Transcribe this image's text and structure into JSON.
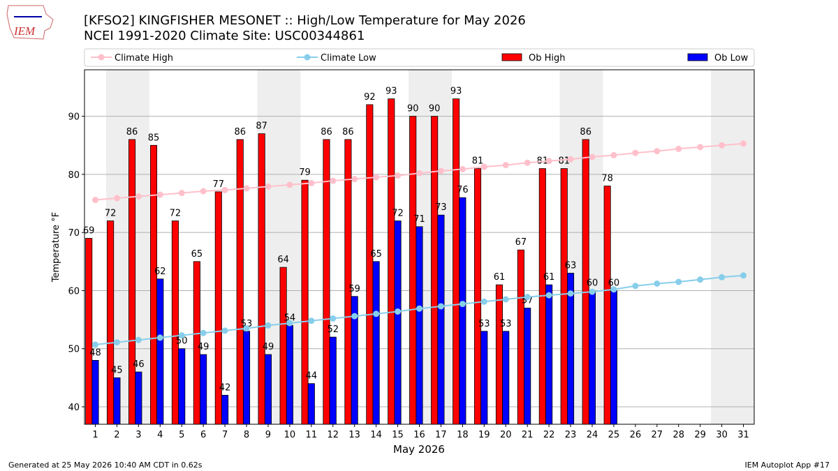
{
  "chart_data": {
    "type": "bar",
    "logo": "IEM",
    "title": "[KFSO2] KINGFISHER MESONET :: High/Low Temperature for May 2026",
    "subtitle": "NCEI 1991-2020 Climate Site: USC00344861",
    "xlabel": "May 2026",
    "ylabel": "Temperature °F",
    "footer_left": "Generated at 25 May 2026 10:40 AM CDT in 0.62s",
    "footer_right": "IEM Autoplot App #17",
    "categories": [
      "1",
      "2",
      "3",
      "4",
      "5",
      "6",
      "7",
      "8",
      "9",
      "10",
      "11",
      "12",
      "13",
      "14",
      "15",
      "16",
      "17",
      "18",
      "19",
      "20",
      "21",
      "22",
      "23",
      "24",
      "25",
      "26",
      "27",
      "28",
      "29",
      "30",
      "31"
    ],
    "ylim": [
      37,
      98
    ],
    "yticks": [
      40,
      50,
      60,
      70,
      80,
      90
    ],
    "grid": true,
    "series": [
      {
        "name": "Climate High",
        "type": "line",
        "color": "#ffc0cb",
        "values": [
          75.6,
          75.9,
          76.2,
          76.5,
          76.8,
          77.1,
          77.3,
          77.6,
          77.9,
          78.2,
          78.5,
          78.9,
          79.2,
          79.5,
          79.8,
          80.2,
          80.6,
          80.9,
          81.3,
          81.6,
          82.0,
          82.3,
          82.6,
          83.0,
          83.3,
          83.7,
          84.0,
          84.4,
          84.7,
          85.0,
          85.3
        ]
      },
      {
        "name": "Climate Low",
        "type": "line",
        "color": "#87ceeb",
        "values": [
          50.7,
          51.1,
          51.5,
          51.9,
          52.3,
          52.7,
          53.1,
          53.5,
          54.0,
          54.4,
          54.8,
          55.2,
          55.6,
          56.0,
          56.4,
          56.9,
          57.3,
          57.7,
          58.1,
          58.5,
          58.9,
          59.2,
          59.5,
          59.8,
          60.2,
          60.8,
          61.2,
          61.5,
          61.9,
          62.3,
          62.6
        ]
      },
      {
        "name": "Ob High",
        "type": "bar",
        "color": "#ff0000",
        "values": [
          69,
          72,
          86,
          85,
          72,
          65,
          77,
          86,
          87,
          64,
          79,
          86,
          86,
          92,
          93,
          90,
          90,
          93,
          81,
          61,
          67,
          81,
          81,
          86,
          78,
          null,
          null,
          null,
          null,
          null,
          null
        ]
      },
      {
        "name": "Ob Low",
        "type": "bar",
        "color": "#0000ff",
        "values": [
          48,
          45,
          46,
          62,
          50,
          49,
          42,
          53,
          49,
          54,
          44,
          52,
          59,
          65,
          72,
          71,
          73,
          76,
          53,
          53,
          57,
          61,
          63,
          60,
          60,
          null,
          null,
          null,
          null,
          null,
          null
        ]
      }
    ]
  }
}
